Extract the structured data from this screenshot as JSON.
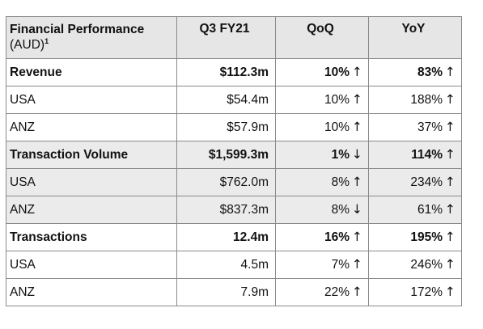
{
  "table": {
    "header": {
      "col1_line1": "Financial Performance",
      "col1_line2": "(AUD)",
      "col1_sup": "1",
      "col2": "Q3 FY21",
      "col3": "QoQ",
      "col4": "YoY"
    },
    "rows": [
      {
        "label": "Revenue",
        "q3": "$112.3m",
        "qoq": "10%",
        "qoq_arrow": "↑",
        "yoy": "83%",
        "yoy_arrow": "↑"
      },
      {
        "label": "USA",
        "q3": "$54.4m",
        "qoq": "10%",
        "qoq_arrow": "↑",
        "yoy": "188%",
        "yoy_arrow": "↑"
      },
      {
        "label": "ANZ",
        "q3": "$57.9m",
        "qoq": "10%",
        "qoq_arrow": "↑",
        "yoy": "37%",
        "yoy_arrow": "↑"
      },
      {
        "label": "Transaction Volume",
        "q3": "$1,599.3m",
        "qoq": "1%",
        "qoq_arrow": "↓",
        "yoy": "114%",
        "yoy_arrow": "↑"
      },
      {
        "label": "USA",
        "q3": "$762.0m",
        "qoq": "8%",
        "qoq_arrow": "↑",
        "yoy": "234%",
        "yoy_arrow": "↑"
      },
      {
        "label": "ANZ",
        "q3": "$837.3m",
        "qoq": "8%",
        "qoq_arrow": "↓",
        "yoy": "61%",
        "yoy_arrow": "↑"
      },
      {
        "label": "Transactions",
        "q3": "12.4m",
        "qoq": "16%",
        "qoq_arrow": "↑",
        "yoy": "195%",
        "yoy_arrow": "↑"
      },
      {
        "label": "USA",
        "q3": "4.5m",
        "qoq": "7%",
        "qoq_arrow": "↑",
        "yoy": "246%",
        "yoy_arrow": "↑"
      },
      {
        "label": "ANZ",
        "q3": "7.9m",
        "qoq": "22%",
        "qoq_arrow": "↑",
        "yoy": "172%",
        "yoy_arrow": "↑"
      }
    ]
  },
  "colors": {
    "header_bg": "#e6e6e6",
    "shaded_row_bg": "#ebebeb",
    "border": "#8a8a8a",
    "text": "#111111"
  }
}
